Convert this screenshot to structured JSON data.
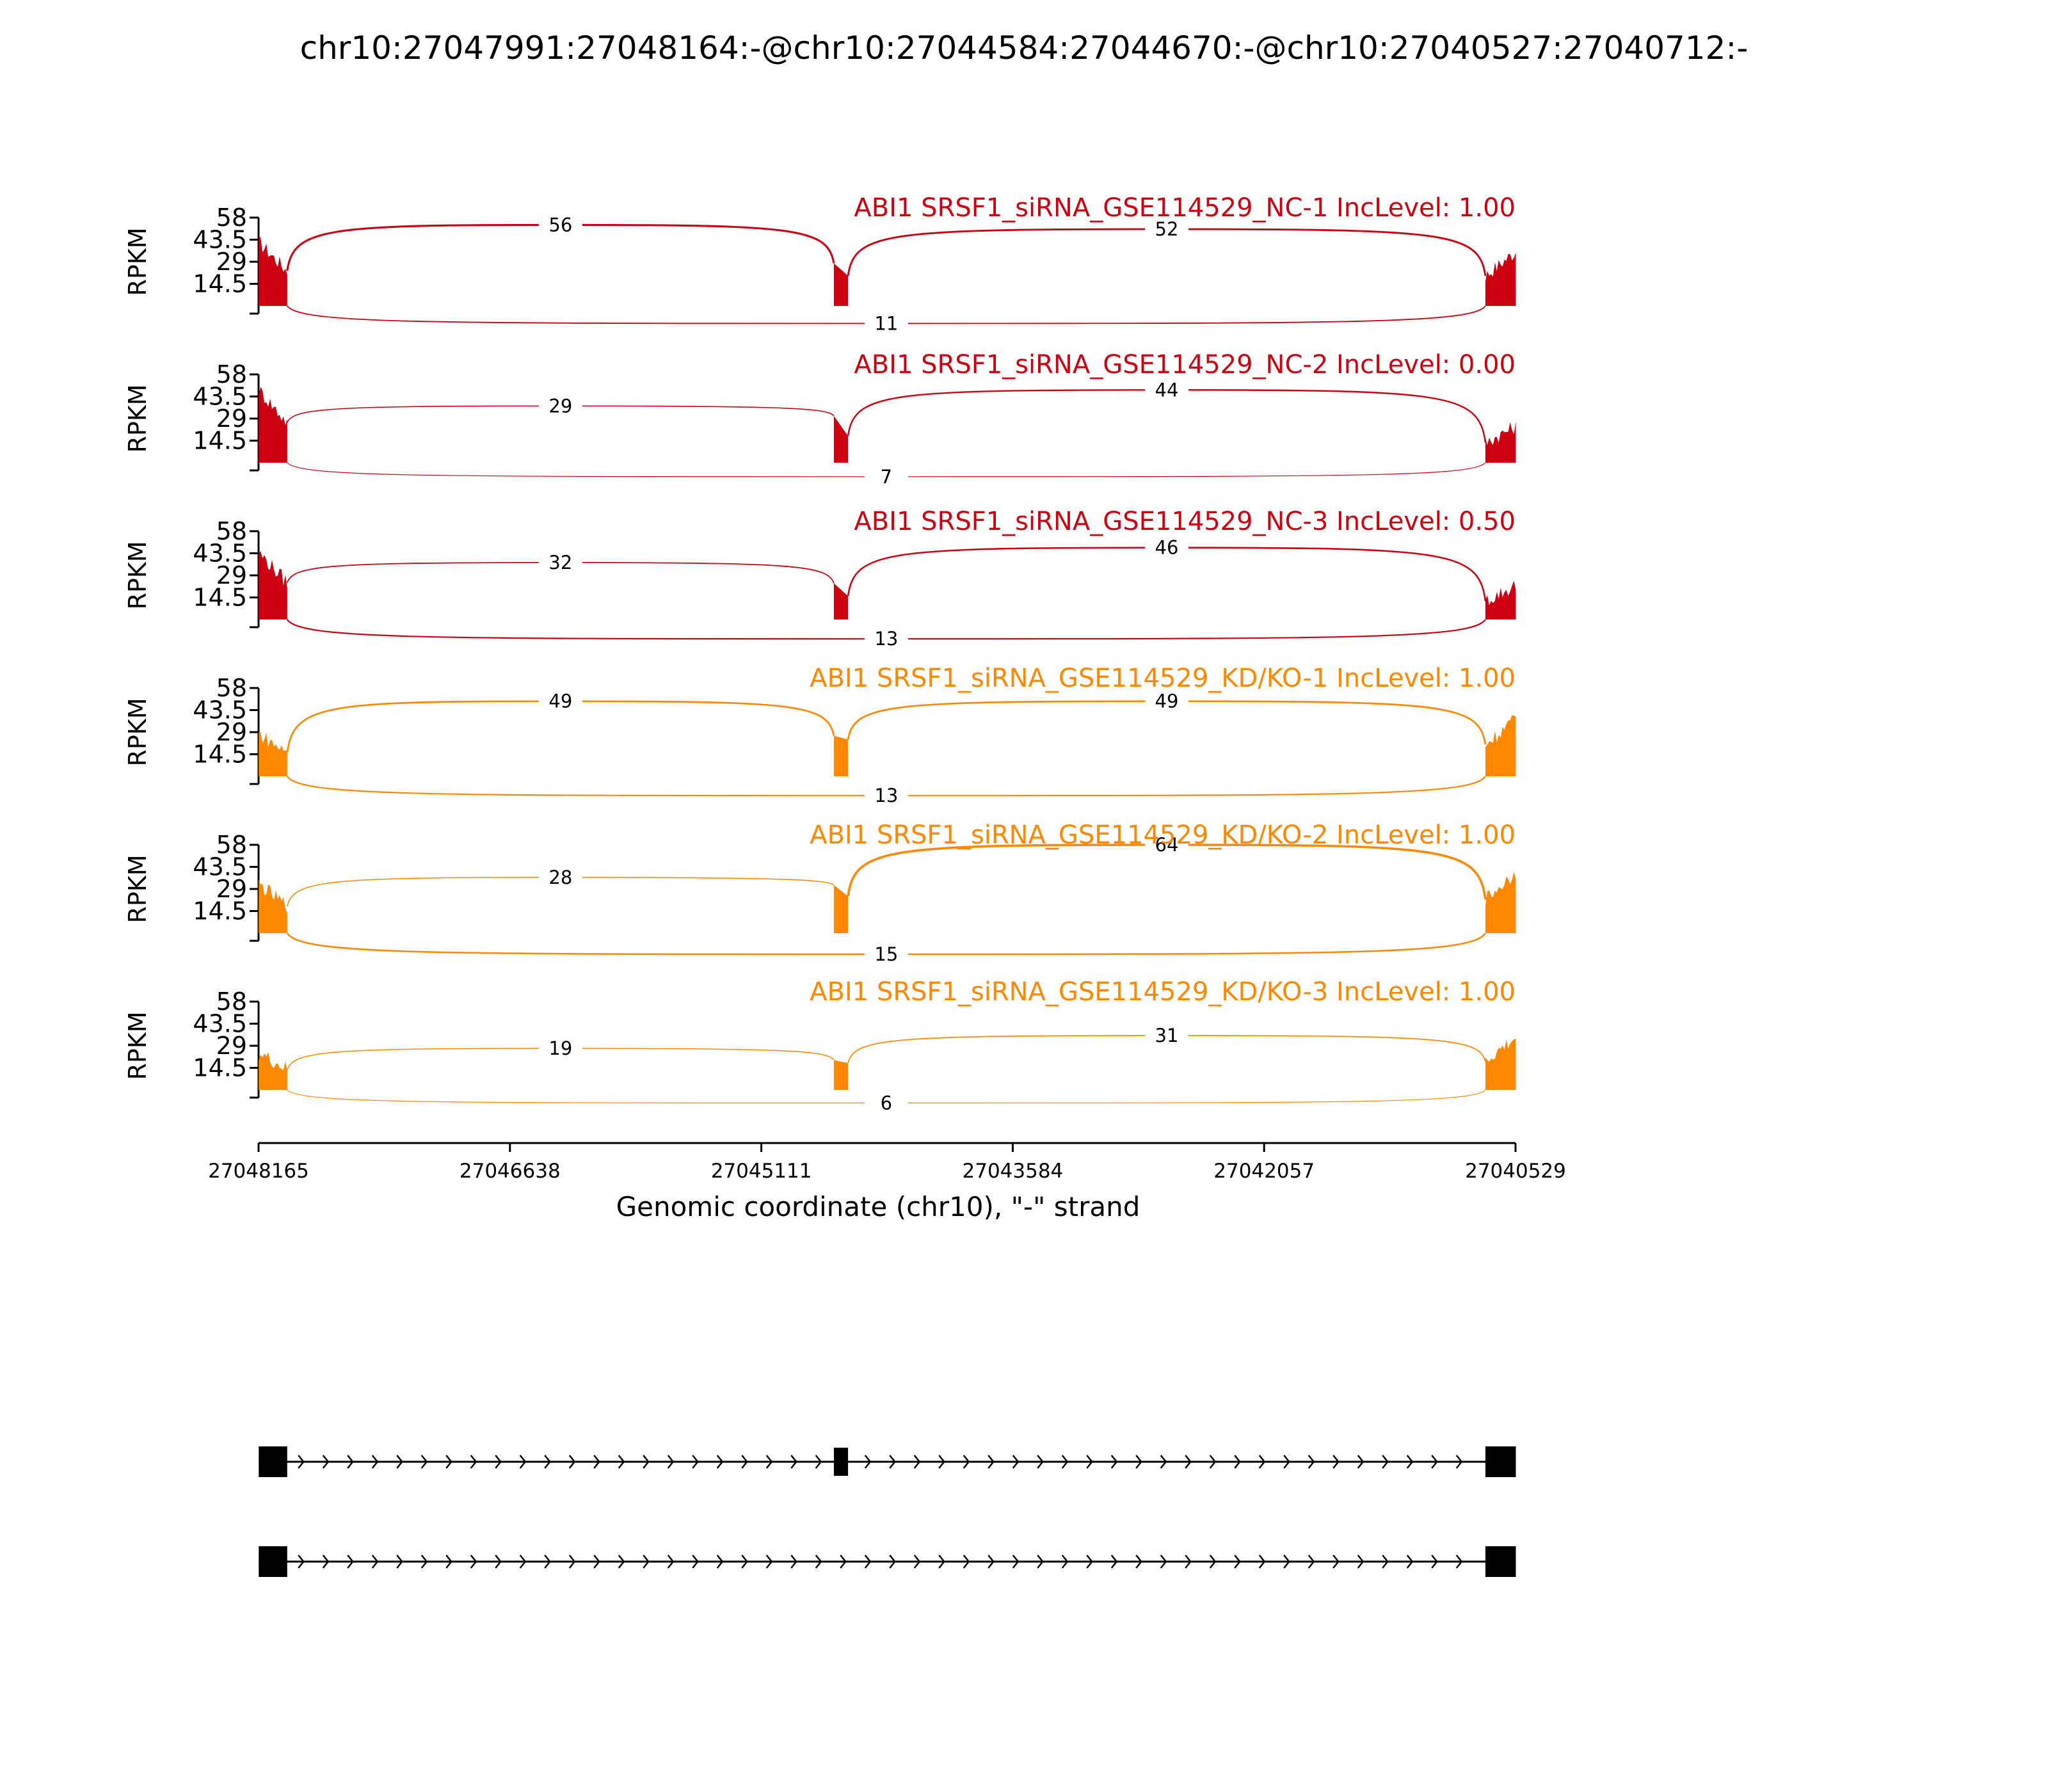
{
  "chart_data": {
    "type": "sashimi",
    "title": "chr10:27047991:27048164:-@chr10:27044584:27044670:-@chr10:27040527:27040712:-",
    "xlabel": "Genomic coordinate (chr10), \"-\" strand",
    "ylabel": "RPKM",
    "xlim": [
      27048165,
      27040529
    ],
    "x_ticks": [
      "27048165",
      "27046638",
      "27045111",
      "27043584",
      "27042057",
      "27040529"
    ],
    "y_ticks": [
      "58",
      "43.5",
      "29",
      "14.5"
    ],
    "ylim": [
      0,
      58
    ],
    "exons": [
      {
        "start": 27048164,
        "end": 27047991
      },
      {
        "start": 27044670,
        "end": 27044584
      },
      {
        "start": 27040712,
        "end": 27040527
      }
    ],
    "tracks": [
      {
        "label": "ABI1 SRSF1_siRNA_GSE114529_NC-1 IncLevel: 1.00",
        "group": "NC",
        "junctions": {
          "upstream": 56,
          "downstream": 52,
          "skip": 11
        }
      },
      {
        "label": "ABI1 SRSF1_siRNA_GSE114529_NC-2 IncLevel: 0.00",
        "group": "NC",
        "junctions": {
          "upstream": 29,
          "downstream": 44,
          "skip": 7
        }
      },
      {
        "label": "ABI1 SRSF1_siRNA_GSE114529_NC-3 IncLevel: 0.50",
        "group": "NC",
        "junctions": {
          "upstream": 32,
          "downstream": 46,
          "skip": 13
        }
      },
      {
        "label": "ABI1 SRSF1_siRNA_GSE114529_KD/KO-1 IncLevel: 1.00",
        "group": "KD",
        "junctions": {
          "upstream": 49,
          "downstream": 49,
          "skip": 13
        }
      },
      {
        "label": "ABI1 SRSF1_siRNA_GSE114529_KD/KO-2 IncLevel: 1.00",
        "group": "KD",
        "junctions": {
          "upstream": 28,
          "downstream": 64,
          "skip": 15
        }
      },
      {
        "label": "ABI1 SRSF1_siRNA_GSE114529_KD/KO-3 IncLevel: 1.00",
        "group": "KD",
        "junctions": {
          "upstream": 19,
          "downstream": 31,
          "skip": 6
        }
      }
    ],
    "isoforms": [
      {
        "exons": [
          0,
          1,
          2
        ]
      },
      {
        "exons": [
          0,
          2
        ]
      }
    ],
    "colors": {
      "NC": "#cc0010",
      "KD": "#ff8800",
      "gene_model": "#000000"
    }
  }
}
